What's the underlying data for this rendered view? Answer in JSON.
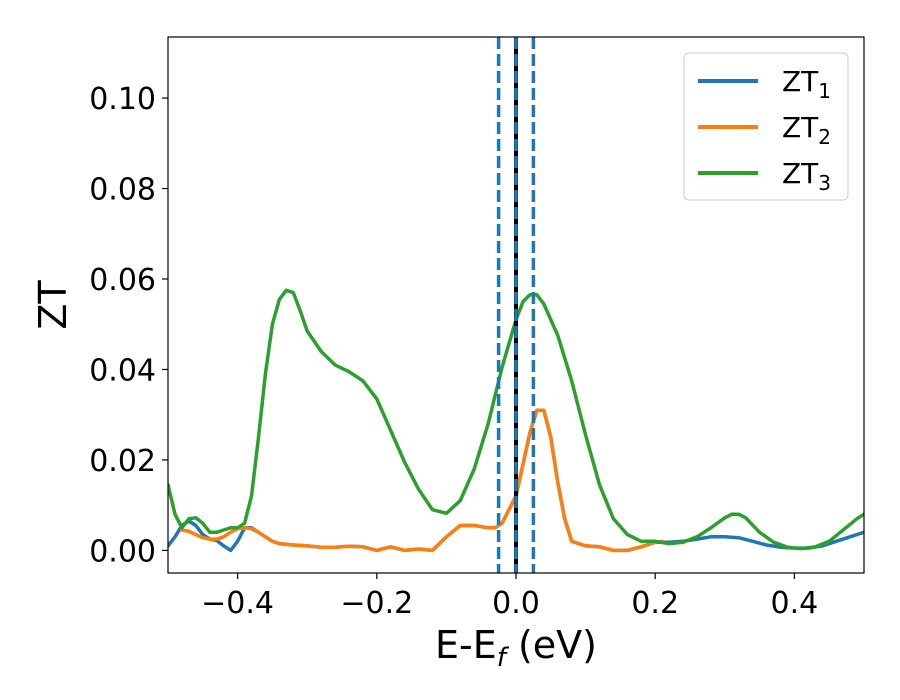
{
  "chart_data": {
    "type": "line",
    "title": "",
    "xlabel": {
      "main": "E-E",
      "sub": "f",
      "suffix": " (eV)"
    },
    "ylabel": "ZT",
    "xlim": [
      -0.5,
      0.5
    ],
    "ylim": [
      -0.005,
      0.1135
    ],
    "xticks": [
      -0.4,
      -0.2,
      0.0,
      0.2,
      0.4
    ],
    "xtick_labels": [
      "−0.4",
      "−0.2",
      "0.0",
      "0.2",
      "0.4"
    ],
    "yticks": [
      0.0,
      0.02,
      0.04,
      0.06,
      0.08,
      0.1
    ],
    "ytick_labels": [
      "0.00",
      "0.02",
      "0.04",
      "0.06",
      "0.08",
      "0.10"
    ],
    "grid": false,
    "legend_position": "top-right",
    "vlines": [
      {
        "x": -0.025,
        "style": "dashed",
        "color": "#1f77b4"
      },
      {
        "x": 0.0,
        "style": "solid",
        "color": "#000000"
      },
      {
        "x": 0.0,
        "style": "dashed",
        "color": "#1f77b4"
      },
      {
        "x": 0.025,
        "style": "dashed",
        "color": "#1f77b4"
      }
    ],
    "series": [
      {
        "name": "ZT",
        "sub": "1",
        "color": "#1f77b4",
        "points": [
          [
            -0.5,
            0.001
          ],
          [
            -0.49,
            0.003
          ],
          [
            -0.48,
            0.0055
          ],
          [
            -0.47,
            0.0065
          ],
          [
            -0.46,
            0.0055
          ],
          [
            -0.45,
            0.0035
          ],
          [
            -0.44,
            0.0025
          ],
          [
            -0.43,
            0.0022
          ],
          [
            -0.42,
            0.001
          ],
          [
            -0.41,
            0.0
          ],
          [
            -0.4,
            0.002
          ],
          [
            -0.39,
            0.005
          ],
          [
            -0.38,
            0.005
          ],
          [
            -0.37,
            0.004
          ],
          [
            -0.36,
            0.003
          ],
          [
            -0.35,
            0.002
          ],
          [
            -0.34,
            0.0015
          ],
          [
            -0.32,
            0.0012
          ],
          [
            -0.3,
            0.001
          ],
          [
            -0.28,
            0.0007
          ],
          [
            -0.26,
            0.0007
          ],
          [
            -0.24,
            0.0009
          ],
          [
            -0.22,
            0.0008
          ],
          [
            -0.2,
            0.0
          ],
          [
            -0.18,
            0.0008
          ],
          [
            -0.16,
            0.0
          ],
          [
            -0.14,
            0.0003
          ],
          [
            -0.12,
            0.0
          ],
          [
            -0.1,
            0.003
          ],
          [
            -0.08,
            0.0055
          ],
          [
            -0.06,
            0.0055
          ],
          [
            -0.04,
            0.005
          ],
          [
            -0.03,
            0.005
          ],
          [
            -0.02,
            0.006
          ],
          [
            -0.01,
            0.009
          ],
          [
            0.0,
            0.012
          ],
          [
            0.01,
            0.019
          ],
          [
            0.02,
            0.026
          ],
          [
            0.03,
            0.031
          ],
          [
            0.04,
            0.031
          ],
          [
            0.05,
            0.025
          ],
          [
            0.06,
            0.015
          ],
          [
            0.07,
            0.007
          ],
          [
            0.08,
            0.002
          ],
          [
            0.1,
            0.001
          ],
          [
            0.12,
            0.0008
          ],
          [
            0.14,
            0.0
          ],
          [
            0.16,
            0.0
          ],
          [
            0.18,
            0.0008
          ],
          [
            0.2,
            0.0018
          ],
          [
            0.22,
            0.0018
          ],
          [
            0.24,
            0.002
          ],
          [
            0.26,
            0.0025
          ],
          [
            0.28,
            0.003
          ],
          [
            0.3,
            0.003
          ],
          [
            0.32,
            0.0028
          ],
          [
            0.34,
            0.002
          ],
          [
            0.36,
            0.0012
          ],
          [
            0.38,
            0.0007
          ],
          [
            0.4,
            0.0005
          ],
          [
            0.42,
            0.0005
          ],
          [
            0.44,
            0.001
          ],
          [
            0.46,
            0.002
          ],
          [
            0.48,
            0.003
          ],
          [
            0.5,
            0.004
          ]
        ]
      },
      {
        "name": "ZT",
        "sub": "2",
        "color": "#ff7f0e",
        "points": [
          [
            -0.48,
            0.0045
          ],
          [
            -0.47,
            0.0042
          ],
          [
            -0.46,
            0.0035
          ],
          [
            -0.45,
            0.0028
          ],
          [
            -0.44,
            0.0025
          ],
          [
            -0.43,
            0.0025
          ],
          [
            -0.42,
            0.003
          ],
          [
            -0.41,
            0.004
          ],
          [
            -0.4,
            0.0048
          ],
          [
            -0.39,
            0.005
          ],
          [
            -0.38,
            0.0048
          ],
          [
            -0.37,
            0.004
          ],
          [
            -0.36,
            0.003
          ],
          [
            -0.35,
            0.002
          ],
          [
            -0.34,
            0.0015
          ],
          [
            -0.32,
            0.0012
          ],
          [
            -0.3,
            0.001
          ],
          [
            -0.28,
            0.0007
          ],
          [
            -0.26,
            0.0007
          ],
          [
            -0.24,
            0.0009
          ],
          [
            -0.22,
            0.0008
          ],
          [
            -0.2,
            0.0
          ],
          [
            -0.18,
            0.0008
          ],
          [
            -0.16,
            0.0
          ],
          [
            -0.14,
            0.0003
          ],
          [
            -0.12,
            0.0
          ],
          [
            -0.1,
            0.003
          ],
          [
            -0.08,
            0.0055
          ],
          [
            -0.06,
            0.0055
          ],
          [
            -0.04,
            0.005
          ],
          [
            -0.03,
            0.005
          ],
          [
            -0.02,
            0.006
          ],
          [
            -0.01,
            0.009
          ],
          [
            0.0,
            0.012
          ],
          [
            0.01,
            0.019
          ],
          [
            0.02,
            0.026
          ],
          [
            0.03,
            0.031
          ],
          [
            0.04,
            0.031
          ],
          [
            0.05,
            0.025
          ],
          [
            0.06,
            0.015
          ],
          [
            0.07,
            0.007
          ],
          [
            0.08,
            0.002
          ],
          [
            0.1,
            0.001
          ],
          [
            0.12,
            0.0008
          ],
          [
            0.14,
            0.0
          ],
          [
            0.16,
            0.0
          ],
          [
            0.18,
            0.0008
          ],
          [
            0.2,
            0.0018
          ],
          [
            0.21,
            0.002
          ]
        ]
      },
      {
        "name": "ZT",
        "sub": "3",
        "color": "#2ca02c",
        "points": [
          [
            -0.5,
            0.0145
          ],
          [
            -0.49,
            0.008
          ],
          [
            -0.48,
            0.005
          ],
          [
            -0.47,
            0.007
          ],
          [
            -0.46,
            0.0072
          ],
          [
            -0.45,
            0.006
          ],
          [
            -0.44,
            0.004
          ],
          [
            -0.43,
            0.004
          ],
          [
            -0.42,
            0.0045
          ],
          [
            -0.41,
            0.005
          ],
          [
            -0.4,
            0.005
          ],
          [
            -0.39,
            0.006
          ],
          [
            -0.38,
            0.012
          ],
          [
            -0.37,
            0.025
          ],
          [
            -0.36,
            0.039
          ],
          [
            -0.35,
            0.05
          ],
          [
            -0.34,
            0.0555
          ],
          [
            -0.33,
            0.0575
          ],
          [
            -0.32,
            0.057
          ],
          [
            -0.31,
            0.053
          ],
          [
            -0.3,
            0.0485
          ],
          [
            -0.28,
            0.044
          ],
          [
            -0.26,
            0.041
          ],
          [
            -0.24,
            0.0395
          ],
          [
            -0.22,
            0.0375
          ],
          [
            -0.2,
            0.0335
          ],
          [
            -0.18,
            0.0265
          ],
          [
            -0.16,
            0.0195
          ],
          [
            -0.14,
            0.0135
          ],
          [
            -0.12,
            0.009
          ],
          [
            -0.1,
            0.0082
          ],
          [
            -0.08,
            0.011
          ],
          [
            -0.06,
            0.018
          ],
          [
            -0.04,
            0.028
          ],
          [
            -0.02,
            0.0405
          ],
          [
            0.0,
            0.051
          ],
          [
            0.01,
            0.055
          ],
          [
            0.02,
            0.0565
          ],
          [
            0.03,
            0.0565
          ],
          [
            0.04,
            0.0545
          ],
          [
            0.06,
            0.0475
          ],
          [
            0.08,
            0.0375
          ],
          [
            0.1,
            0.0255
          ],
          [
            0.12,
            0.0145
          ],
          [
            0.14,
            0.007
          ],
          [
            0.16,
            0.0035
          ],
          [
            0.18,
            0.002
          ],
          [
            0.2,
            0.002
          ],
          [
            0.22,
            0.0015
          ],
          [
            0.24,
            0.0018
          ],
          [
            0.26,
            0.003
          ],
          [
            0.28,
            0.005
          ],
          [
            0.3,
            0.0072
          ],
          [
            0.31,
            0.008
          ],
          [
            0.32,
            0.008
          ],
          [
            0.33,
            0.0072
          ],
          [
            0.35,
            0.004
          ],
          [
            0.37,
            0.0018
          ],
          [
            0.39,
            0.0007
          ],
          [
            0.41,
            0.0004
          ],
          [
            0.43,
            0.0008
          ],
          [
            0.45,
            0.002
          ],
          [
            0.47,
            0.0045
          ],
          [
            0.49,
            0.007
          ],
          [
            0.5,
            0.008
          ]
        ]
      }
    ]
  }
}
